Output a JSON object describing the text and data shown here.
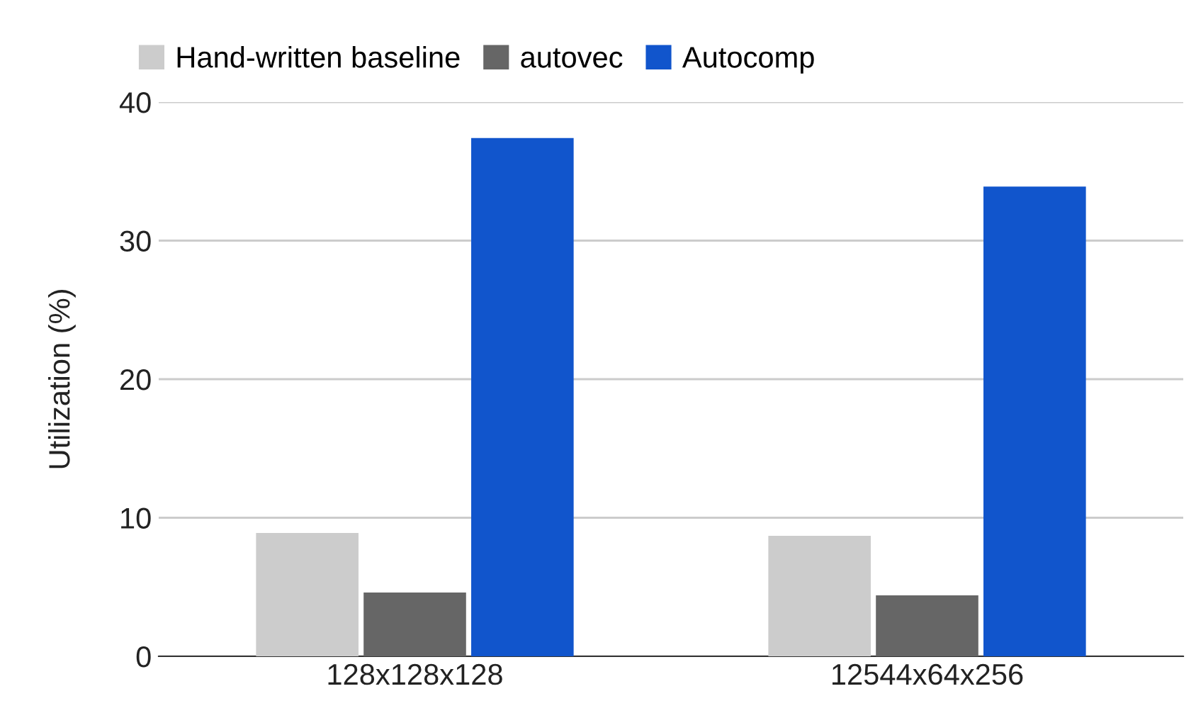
{
  "chart_data": {
    "type": "bar",
    "ylabel": "Utilization (%)",
    "categories": [
      "128x128x128",
      "12544x64x256"
    ],
    "series": [
      {
        "name": "Hand-written baseline",
        "color": "#cccccc",
        "values": [
          8.9,
          8.7
        ]
      },
      {
        "name": "autovec",
        "color": "#666666",
        "values": [
          4.6,
          4.4
        ]
      },
      {
        "name": "Autocomp",
        "color": "#1155cc",
        "values": [
          37.4,
          33.9
        ]
      }
    ],
    "ylim": [
      0,
      40
    ],
    "yticks": [
      0,
      10,
      20,
      30,
      40
    ],
    "grid": "y",
    "legend": "top left"
  }
}
